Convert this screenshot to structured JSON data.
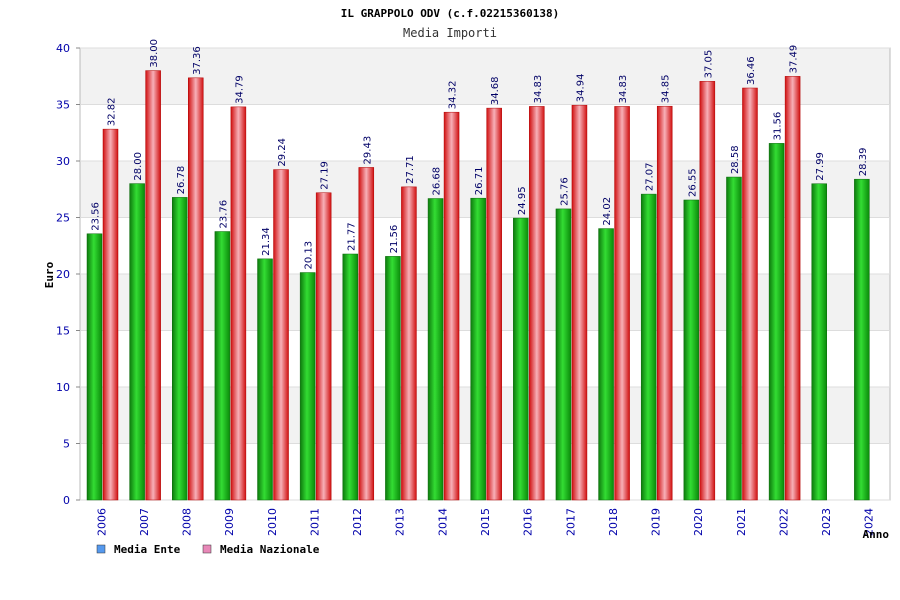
{
  "chart_data": {
    "type": "bar",
    "title": "IL GRAPPOLO ODV (c.f.02215360138)",
    "subtitle": "Media Importi",
    "xlabel": "Anno",
    "ylabel": "Euro",
    "ylim": [
      0,
      40
    ],
    "yticks": [
      0,
      5,
      10,
      15,
      20,
      25,
      30,
      35,
      40
    ],
    "grid": true,
    "legend_position": "bottom-left",
    "categories": [
      "2006",
      "2007",
      "2008",
      "2009",
      "2010",
      "2011",
      "2012",
      "2013",
      "2014",
      "2015",
      "2016",
      "2017",
      "2018",
      "2019",
      "2020",
      "2021",
      "2022",
      "2023",
      "2024"
    ],
    "series": [
      {
        "name": "Media Ente",
        "color": "#1faa1f",
        "legend_color": "#5599ee",
        "values": [
          23.56,
          28.0,
          26.78,
          23.76,
          21.34,
          20.13,
          21.77,
          21.56,
          26.68,
          26.71,
          24.95,
          25.76,
          24.02,
          27.07,
          26.55,
          28.58,
          31.56,
          27.99,
          28.39
        ],
        "labels": [
          "23.56",
          "28.00",
          "26.78",
          "23.76",
          "21.34",
          "20.13",
          "21.77",
          "21.56",
          "26.68",
          "26.71",
          "24.95",
          "25.76",
          "24.02",
          "27.07",
          "26.55",
          "28.58",
          "31.56",
          "27.99",
          "28.39"
        ]
      },
      {
        "name": "Media Nazionale",
        "color": "#e32020",
        "legend_color": "#e888b8",
        "values": [
          32.82,
          38.0,
          37.36,
          34.79,
          29.24,
          27.19,
          29.43,
          27.71,
          34.32,
          34.68,
          34.83,
          34.94,
          34.83,
          34.85,
          37.05,
          36.46,
          37.49,
          null,
          null
        ],
        "labels": [
          "32.82",
          "38.00",
          "37.36",
          "34.79",
          "29.24",
          "27.19",
          "29.43",
          "27.71",
          "34.32",
          "34.68",
          "34.83",
          "34.94",
          "34.83",
          "34.85",
          "37.05",
          "36.46",
          "37.49",
          "",
          ""
        ]
      }
    ]
  }
}
